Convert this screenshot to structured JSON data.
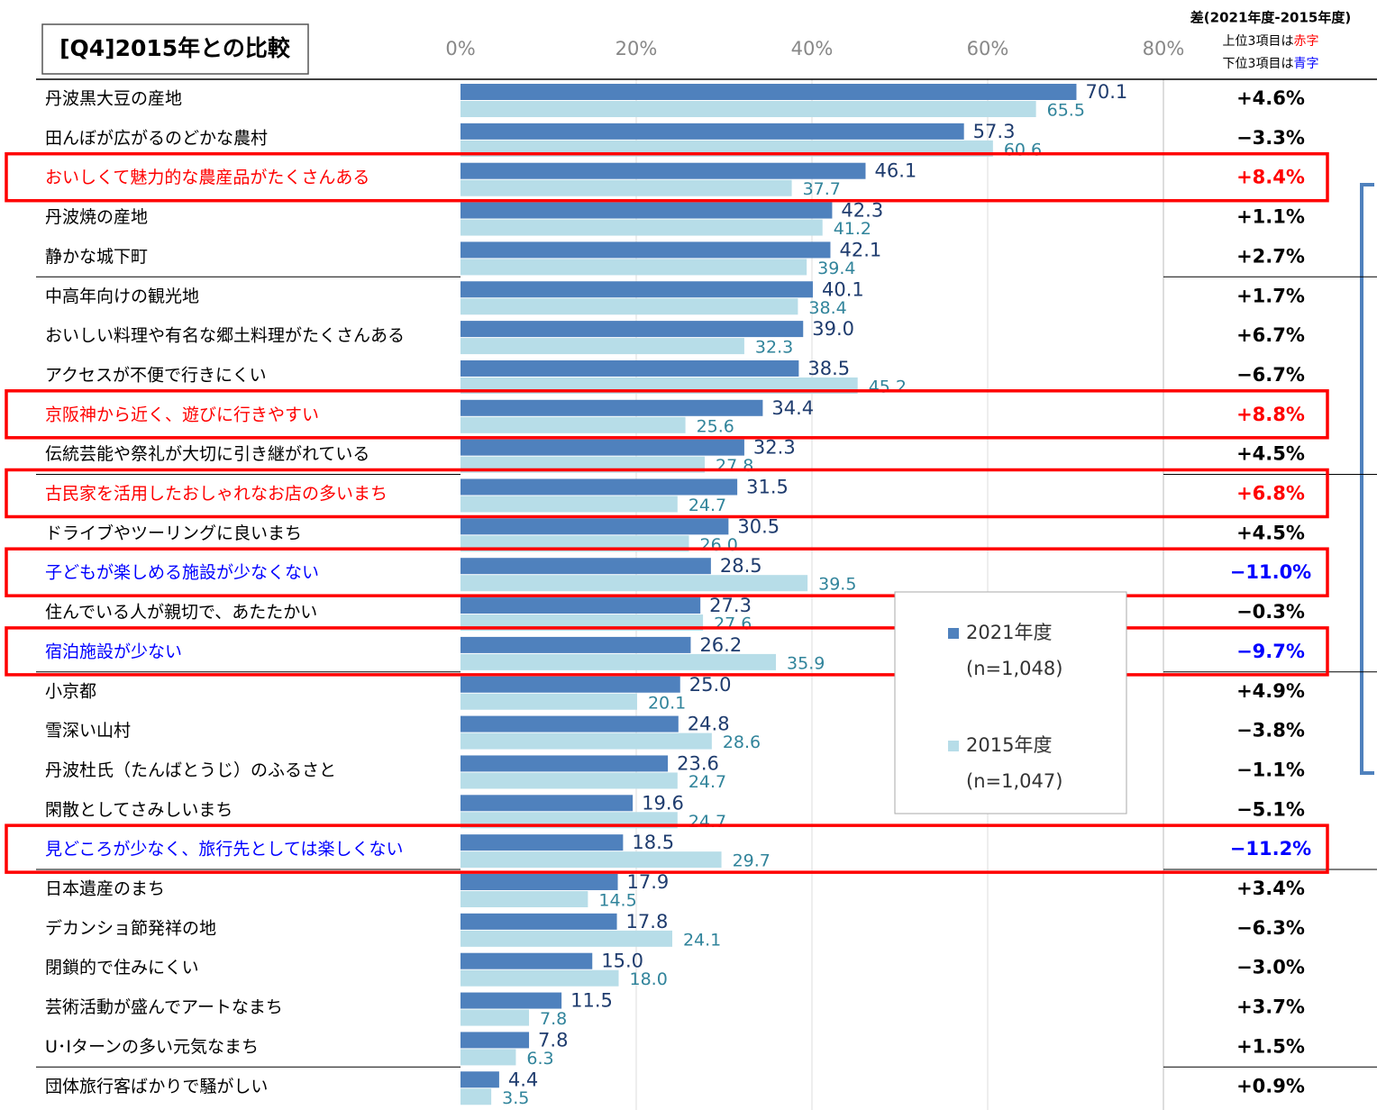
{
  "chart_data": {
    "type": "bar",
    "orientation": "horizontal",
    "title": "[Q4]2015年との比較",
    "categories": [
      "丹波黒大豆の産地",
      "田んぼが広がるのどかな農村",
      "おいしくて魅力的な農産品がたくさんある",
      "丹波焼の産地",
      "静かな城下町",
      "中高年向けの観光地",
      "おいしい料理や有名な郷土料理がたくさんある",
      "アクセスが不便で行きにくい",
      "京阪神から近く、遊びに行きやすい",
      "伝統芸能や祭礼が大切に引き継がれている",
      "古民家を活用したおしゃれなお店の多いまち",
      "ドライブやツーリングに良いまち",
      "子どもが楽しめる施設が少なくない",
      "住んでいる人が親切で、あたたかい",
      "宿泊施設が少ない",
      "小京都",
      "雪深い山村",
      "丹波杜氏（たんばとうじ）のふるさと",
      "閑散としてさみしいまち",
      "見どころが少なく、旅行先としては楽しくない",
      "日本遺産のまち",
      "デカンショ節発祥の地",
      "閉鎖的で住みにくい",
      "芸術活動が盛んでアートなまち",
      "U･Iターンの多い元気なまち",
      "団体旅行客ばかりで騒がしい"
    ],
    "series": [
      {
        "name": "2021年度",
        "sample": "(n=1,048)",
        "color": "#4f81bd",
        "label_color": "#1f3c6e",
        "values": [
          70.1,
          57.3,
          46.1,
          42.3,
          42.1,
          40.1,
          39.0,
          38.5,
          34.4,
          32.3,
          31.5,
          30.5,
          28.5,
          27.3,
          26.2,
          25.0,
          24.8,
          23.6,
          19.6,
          18.5,
          17.9,
          17.8,
          15.0,
          11.5,
          7.8,
          4.4
        ],
        "value_labels": [
          "70.1",
          "57.3",
          "46.1",
          "42.3",
          "42.1",
          "40.1",
          "39.0",
          "38.5",
          "34.4",
          "32.3",
          "31.5",
          "30.5",
          "28.5",
          "27.3",
          "26.2",
          "25.0",
          "24.8",
          "23.6",
          "19.6",
          "18.5",
          "17.9",
          "17.8",
          "15.0",
          "11.5",
          "7.8",
          "4.4"
        ]
      },
      {
        "name": "2015年度",
        "sample": "(n=1,047)",
        "color": "#b7dde8",
        "label_color": "#31849b",
        "values": [
          65.5,
          60.6,
          37.7,
          41.2,
          39.4,
          38.4,
          32.3,
          45.2,
          25.6,
          27.8,
          24.7,
          26.0,
          39.5,
          27.6,
          35.9,
          20.1,
          28.6,
          24.7,
          24.7,
          29.7,
          14.5,
          24.1,
          18.0,
          7.8,
          6.3,
          3.5
        ],
        "value_labels": [
          "65.5",
          "60.6",
          "37.7",
          "41.2",
          "39.4",
          "38.4",
          "32.3",
          "45.2",
          "25.6",
          "27.8",
          "24.7",
          "26.0",
          "39.5",
          "27.6",
          "35.9",
          "20.1",
          "28.6",
          "24.7",
          "24.7",
          "29.7",
          "14.5",
          "24.1",
          "18.0",
          "7.8",
          "6.3",
          "3.5"
        ]
      }
    ],
    "xlim": [
      0,
      80
    ],
    "xticks": [
      {
        "value": 0,
        "label": "0%"
      },
      {
        "value": 20,
        "label": "20%"
      },
      {
        "value": 40,
        "label": "40%"
      },
      {
        "value": 60,
        "label": "60%"
      },
      {
        "value": 80,
        "label": "80%"
      }
    ],
    "grid": true,
    "label_colors": [
      "#000000",
      "#000000",
      "#ff0000",
      "#000000",
      "#000000",
      "#000000",
      "#000000",
      "#000000",
      "#ff0000",
      "#000000",
      "#ff0000",
      "#000000",
      "#0000ff",
      "#000000",
      "#0000ff",
      "#000000",
      "#000000",
      "#000000",
      "#000000",
      "#0000ff",
      "#000000",
      "#000000",
      "#000000",
      "#000000",
      "#000000",
      "#000000"
    ],
    "highlight_color": "#ff0000",
    "differences": {
      "title": "差(2021年度-2015年度)",
      "notes": [
        [
          "上位3項目は",
          "赤字"
        ],
        [
          "下位3項目は",
          "青字"
        ]
      ],
      "values": [
        4.6,
        -3.3,
        8.4,
        1.1,
        2.7,
        1.7,
        6.7,
        -6.7,
        8.8,
        4.5,
        6.8,
        4.5,
        -11.0,
        -0.3,
        -9.7,
        4.9,
        -3.8,
        -1.1,
        -5.1,
        -11.2,
        3.4,
        -6.3,
        -3.0,
        3.7,
        1.5,
        0.9
      ],
      "value_labels": [
        "+4.6%",
        "−3.3%",
        "+8.4%",
        "+1.1%",
        "+2.7%",
        "+1.7%",
        "+6.7%",
        "−6.7%",
        "+8.8%",
        "+4.5%",
        "+6.8%",
        "+4.5%",
        "−11.0%",
        "−0.3%",
        "−9.7%",
        "+4.9%",
        "−3.8%",
        "−1.1%",
        "−5.1%",
        "−11.2%",
        "+3.4%",
        "−6.3%",
        "−3.0%",
        "+3.7%",
        "+1.5%",
        "+0.9%"
      ]
    }
  }
}
